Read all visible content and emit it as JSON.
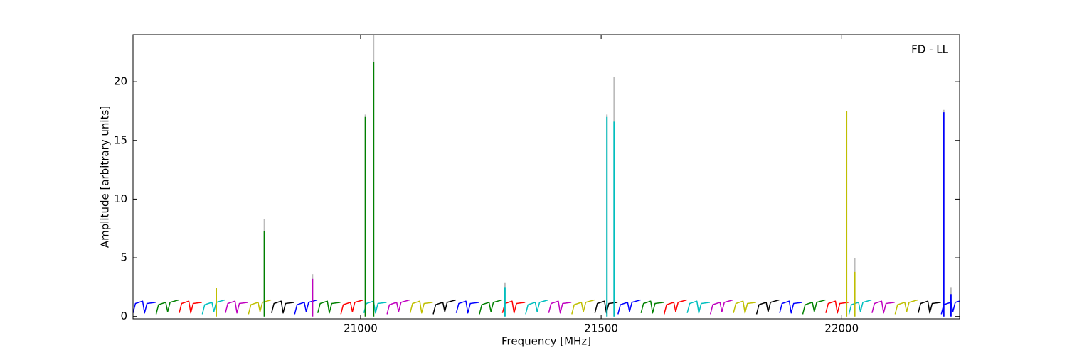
{
  "chart_data": {
    "type": "line",
    "xlabel": "Frequency [MHz]",
    "ylabel": "Amplitude [arbitrary units]",
    "annotation": "FD - LL",
    "xlim": [
      20527,
      22245
    ],
    "ylim": [
      -0.2,
      24
    ],
    "xticks": [
      21000,
      21500,
      22000
    ],
    "yticks": [
      0,
      5,
      10,
      15,
      20
    ],
    "grid": false,
    "series": [
      {
        "color": "#0000ff",
        "x": [
          20527,
          20532,
          20547,
          20551,
          20556,
          20574
        ],
        "values": [
          0.3,
          1.1,
          1.3,
          0.3,
          1.1,
          1.2
        ]
      },
      {
        "color": "#008000",
        "x": [
          20575,
          20580,
          20595,
          20599,
          20604,
          20622
        ],
        "values": [
          0.2,
          1.0,
          1.2,
          0.4,
          1.2,
          1.4
        ]
      },
      {
        "color": "#ff0000",
        "x": [
          20623,
          20628,
          20643,
          20647,
          20652,
          20670
        ],
        "values": [
          0.3,
          1.1,
          1.3,
          0.3,
          1.1,
          1.2
        ]
      },
      {
        "color": "#00bfbf",
        "x": [
          20671,
          20676,
          20691,
          20695,
          20700,
          20718
        ],
        "values": [
          0.2,
          1.0,
          1.2,
          0.4,
          1.2,
          1.4
        ]
      },
      {
        "color": "#bf00bf",
        "x": [
          20719,
          20724,
          20739,
          20743,
          20748,
          20766
        ],
        "values": [
          0.3,
          1.1,
          1.3,
          0.3,
          1.1,
          1.2
        ]
      },
      {
        "color": "#bfbf00",
        "x": [
          20767,
          20772,
          20787,
          20791,
          20796,
          20814
        ],
        "values": [
          0.2,
          1.0,
          1.2,
          0.4,
          1.2,
          1.4
        ]
      },
      {
        "color": "#000000",
        "x": [
          20815,
          20820,
          20835,
          20839,
          20844,
          20862
        ],
        "values": [
          0.3,
          1.1,
          1.3,
          0.3,
          1.1,
          1.2
        ]
      },
      {
        "color": "#0000ff",
        "x": [
          20863,
          20868,
          20883,
          20887,
          20892,
          20910
        ],
        "values": [
          0.2,
          1.0,
          1.2,
          0.4,
          1.2,
          1.4
        ]
      },
      {
        "color": "#008000",
        "x": [
          20911,
          20916,
          20931,
          20935,
          20940,
          20958
        ],
        "values": [
          0.3,
          1.1,
          1.3,
          0.3,
          1.1,
          1.2
        ]
      },
      {
        "color": "#ff0000",
        "x": [
          20959,
          20964,
          20979,
          20983,
          20988,
          21006
        ],
        "values": [
          0.2,
          1.0,
          1.2,
          0.4,
          1.2,
          1.4
        ]
      },
      {
        "color": "#00bfbf",
        "x": [
          21007,
          21012,
          21027,
          21031,
          21036,
          21054
        ],
        "values": [
          0.3,
          1.1,
          1.3,
          0.3,
          1.1,
          1.2
        ]
      },
      {
        "color": "#bf00bf",
        "x": [
          21055,
          21060,
          21075,
          21079,
          21084,
          21102
        ],
        "values": [
          0.2,
          1.0,
          1.2,
          0.4,
          1.2,
          1.4
        ]
      },
      {
        "color": "#bfbf00",
        "x": [
          21103,
          21108,
          21123,
          21127,
          21132,
          21150
        ],
        "values": [
          0.3,
          1.1,
          1.3,
          0.3,
          1.1,
          1.2
        ]
      },
      {
        "color": "#000000",
        "x": [
          21151,
          21156,
          21171,
          21175,
          21180,
          21198
        ],
        "values": [
          0.2,
          1.0,
          1.2,
          0.4,
          1.2,
          1.4
        ]
      },
      {
        "color": "#0000ff",
        "x": [
          21199,
          21204,
          21219,
          21223,
          21228,
          21246
        ],
        "values": [
          0.3,
          1.1,
          1.3,
          0.3,
          1.1,
          1.2
        ]
      },
      {
        "color": "#008000",
        "x": [
          21247,
          21252,
          21267,
          21271,
          21276,
          21294
        ],
        "values": [
          0.2,
          1.0,
          1.2,
          0.4,
          1.2,
          1.4
        ]
      },
      {
        "color": "#ff0000",
        "x": [
          21295,
          21300,
          21315,
          21319,
          21324,
          21342
        ],
        "values": [
          0.3,
          1.1,
          1.3,
          0.3,
          1.1,
          1.2
        ]
      },
      {
        "color": "#00bfbf",
        "x": [
          21343,
          21348,
          21363,
          21367,
          21372,
          21390
        ],
        "values": [
          0.2,
          1.0,
          1.2,
          0.4,
          1.2,
          1.4
        ]
      },
      {
        "color": "#bf00bf",
        "x": [
          21391,
          21396,
          21411,
          21415,
          21420,
          21438
        ],
        "values": [
          0.3,
          1.1,
          1.3,
          0.3,
          1.1,
          1.2
        ]
      },
      {
        "color": "#bfbf00",
        "x": [
          21439,
          21444,
          21459,
          21463,
          21468,
          21486
        ],
        "values": [
          0.2,
          1.0,
          1.2,
          0.4,
          1.2,
          1.4
        ]
      },
      {
        "color": "#000000",
        "x": [
          21487,
          21492,
          21507,
          21511,
          21516,
          21534
        ],
        "values": [
          0.3,
          1.1,
          1.3,
          0.3,
          1.1,
          1.2
        ]
      },
      {
        "color": "#0000ff",
        "x": [
          21535,
          21540,
          21555,
          21559,
          21564,
          21582
        ],
        "values": [
          0.2,
          1.0,
          1.2,
          0.4,
          1.2,
          1.4
        ]
      },
      {
        "color": "#008000",
        "x": [
          21583,
          21588,
          21603,
          21607,
          21612,
          21630
        ],
        "values": [
          0.3,
          1.1,
          1.3,
          0.3,
          1.1,
          1.2
        ]
      },
      {
        "color": "#ff0000",
        "x": [
          21631,
          21636,
          21651,
          21655,
          21660,
          21678
        ],
        "values": [
          0.2,
          1.0,
          1.2,
          0.4,
          1.2,
          1.4
        ]
      },
      {
        "color": "#00bfbf",
        "x": [
          21679,
          21684,
          21699,
          21703,
          21708,
          21726
        ],
        "values": [
          0.3,
          1.1,
          1.3,
          0.3,
          1.1,
          1.2
        ]
      },
      {
        "color": "#bf00bf",
        "x": [
          21727,
          21732,
          21747,
          21751,
          21756,
          21774
        ],
        "values": [
          0.2,
          1.0,
          1.2,
          0.4,
          1.2,
          1.4
        ]
      },
      {
        "color": "#bfbf00",
        "x": [
          21775,
          21780,
          21795,
          21799,
          21804,
          21822
        ],
        "values": [
          0.3,
          1.1,
          1.3,
          0.3,
          1.1,
          1.2
        ]
      },
      {
        "color": "#000000",
        "x": [
          21823,
          21828,
          21843,
          21847,
          21852,
          21870
        ],
        "values": [
          0.2,
          1.0,
          1.2,
          0.4,
          1.2,
          1.4
        ]
      },
      {
        "color": "#0000ff",
        "x": [
          21871,
          21876,
          21891,
          21895,
          21900,
          21918
        ],
        "values": [
          0.3,
          1.1,
          1.3,
          0.3,
          1.1,
          1.2
        ]
      },
      {
        "color": "#008000",
        "x": [
          21919,
          21924,
          21939,
          21943,
          21948,
          21966
        ],
        "values": [
          0.2,
          1.0,
          1.2,
          0.4,
          1.2,
          1.4
        ]
      },
      {
        "color": "#ff0000",
        "x": [
          21967,
          21972,
          21987,
          21991,
          21996,
          22014
        ],
        "values": [
          0.3,
          1.1,
          1.3,
          0.3,
          1.1,
          1.2
        ]
      },
      {
        "color": "#00bfbf",
        "x": [
          22015,
          22020,
          22035,
          22039,
          22044,
          22062
        ],
        "values": [
          0.2,
          1.0,
          1.2,
          0.4,
          1.2,
          1.4
        ]
      },
      {
        "color": "#bf00bf",
        "x": [
          22063,
          22068,
          22083,
          22087,
          22092,
          22110
        ],
        "values": [
          0.3,
          1.1,
          1.3,
          0.3,
          1.1,
          1.2
        ]
      },
      {
        "color": "#bfbf00",
        "x": [
          22111,
          22116,
          22131,
          22135,
          22140,
          22158
        ],
        "values": [
          0.2,
          1.0,
          1.2,
          0.4,
          1.2,
          1.4
        ]
      },
      {
        "color": "#000000",
        "x": [
          22159,
          22164,
          22179,
          22183,
          22188,
          22206
        ],
        "values": [
          0.3,
          1.1,
          1.3,
          0.3,
          1.1,
          1.2
        ]
      },
      {
        "color": "#0000ff",
        "x": [
          22207,
          22212,
          22227,
          22231,
          22236,
          22254
        ],
        "values": [
          0.2,
          1.0,
          1.2,
          0.4,
          1.2,
          1.4
        ]
      }
    ],
    "spikes": {
      "x": [
        20700,
        20800,
        20900,
        21010,
        21027,
        21300,
        21512,
        21527,
        22010,
        22027,
        22212,
        22227
      ],
      "values": [
        2.4,
        7.3,
        3.2,
        17,
        21.7,
        2.5,
        17,
        16.6,
        17.5,
        3.8,
        17.4,
        1.9
      ],
      "colors": [
        "#bfbf00",
        "#008000",
        "#bf00bf",
        "#008000",
        "#008000",
        "#00bfbf",
        "#00bfbf",
        "#00bfbf",
        "#bfbf00",
        "#bfbf00",
        "#0000ff",
        "#0000ff"
      ],
      "halo": [
        2.4,
        8.3,
        3.6,
        17.2,
        24,
        2.9,
        17.2,
        20.4,
        17.5,
        5.0,
        17.6,
        2.5
      ],
      "halo_color": "#bbbbbb"
    }
  }
}
